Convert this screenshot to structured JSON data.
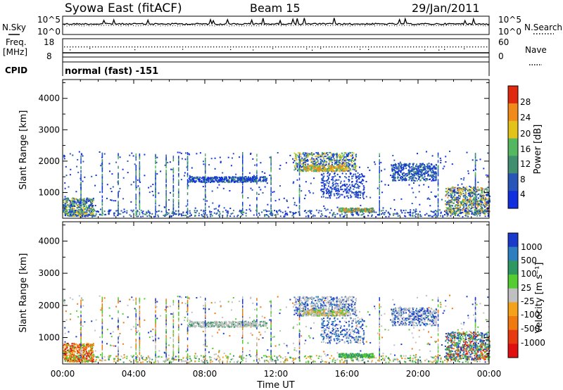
{
  "header": {
    "station": "Syowa East (fitACF)",
    "beam": "Beam 15",
    "date": "29/Jan/2011"
  },
  "top_panels": {
    "nsky_label": "N.Sky",
    "nsearch_label": "N.Search",
    "noise_tick_hi": "10^5",
    "noise_tick_lo": "10^0",
    "freq_label": "Freq.",
    "freq_unit": "[MHz]",
    "freq_tick_hi": "18",
    "freq_tick_lo": "8",
    "nave_label": "Nave",
    "nave_tick_hi": "60",
    "nave_tick_lo": "0",
    "cpid_label": "CPID",
    "cpid_value": "normal (fast) -151"
  },
  "chart_data": [
    {
      "type": "heatmap",
      "name": "power",
      "ylabel": "Slant Range [km]",
      "xlabel": "",
      "ylim": [
        180,
        4600
      ],
      "yticks": [
        "1000",
        "2000",
        "3000",
        "4000"
      ],
      "colorbar_label": "Power [dB]",
      "colorbar_ticks": [
        "4",
        "8",
        "12",
        "16",
        "20",
        "24",
        "28"
      ],
      "colors": [
        "#1030e0",
        "#2855b8",
        "#3f8f70",
        "#55b860",
        "#e3c21a",
        "#f08a1a",
        "#e02a10"
      ],
      "features": [
        {
          "t": [
            0.0,
            1.7
          ],
          "r": [
            200,
            800
          ],
          "level": "low-mid"
        },
        {
          "t": [
            7.0,
            11.5
          ],
          "r": [
            1250,
            1500
          ],
          "level": "low"
        },
        {
          "t": [
            13.0,
            16.5
          ],
          "r": [
            1600,
            2300
          ],
          "level": "mid"
        },
        {
          "t": [
            18.5,
            21.0
          ],
          "r": [
            1300,
            1900
          ],
          "level": "low"
        },
        {
          "t": [
            21.5,
            24.0
          ],
          "r": [
            250,
            1150
          ],
          "level": "mid"
        }
      ]
    },
    {
      "type": "heatmap",
      "name": "velocity",
      "ylabel": "Slant Range [km]",
      "xlabel": "Time UT",
      "ylim": [
        180,
        4600
      ],
      "yticks": [
        "1000",
        "2000",
        "3000",
        "4000"
      ],
      "xticks": [
        "00:00",
        "04:00",
        "08:00",
        "12:00",
        "16:00",
        "20:00",
        "00:00"
      ],
      "colorbar_label": "Velocity [m s⁻¹]",
      "colorbar_ticks": [
        "1000",
        "500",
        "100",
        "25",
        "-25",
        "-100",
        "-500",
        "-1000"
      ],
      "colors": [
        "#1a3acc",
        "#2f7fc0",
        "#2f9860",
        "#55cc30",
        "#c0c0c0",
        "#f4a21a",
        "#f07a10",
        "#e83a10",
        "#e01010"
      ],
      "features": [
        {
          "t": [
            0.0,
            1.7
          ],
          "r": [
            200,
            800
          ],
          "level": "negative"
        },
        {
          "t": [
            7.0,
            11.5
          ],
          "r": [
            1250,
            1500
          ],
          "level": "ground"
        },
        {
          "t": [
            13.0,
            16.5
          ],
          "r": [
            1600,
            2300
          ],
          "level": "ground"
        },
        {
          "t": [
            18.5,
            21.0
          ],
          "r": [
            1300,
            1900
          ],
          "level": "ground"
        },
        {
          "t": [
            21.5,
            24.0
          ],
          "r": [
            250,
            1150
          ],
          "level": "positive"
        }
      ]
    }
  ]
}
